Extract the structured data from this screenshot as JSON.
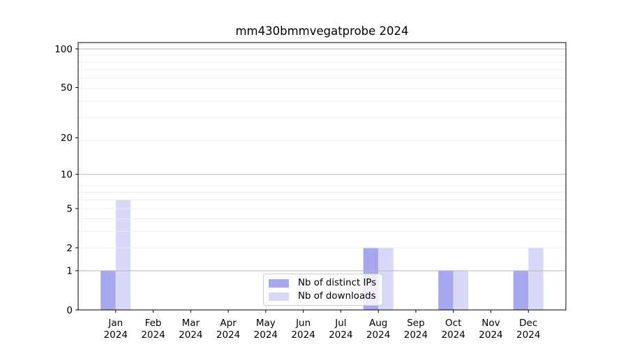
{
  "chart_data": {
    "type": "bar",
    "title": "mm430bmmvegatprobe 2024",
    "categories": [
      "Jan",
      "Feb",
      "Mar",
      "Apr",
      "May",
      "Jun",
      "Jul",
      "Aug",
      "Sep",
      "Oct",
      "Nov",
      "Dec"
    ],
    "x_tick_year": "2024",
    "series": [
      {
        "name": "Nb of distinct IPs",
        "color": "#a7a7f0",
        "values": [
          1,
          0,
          0,
          0,
          0,
          0,
          0,
          2,
          0,
          1,
          0,
          1
        ]
      },
      {
        "name": "Nb of downloads",
        "color": "#d8d8f8",
        "values": [
          6,
          0,
          0,
          0,
          0,
          0,
          0,
          2,
          0,
          1,
          0,
          2
        ]
      }
    ],
    "y_axis": {
      "scale": "log10(1+y)",
      "tick_values": [
        0,
        1,
        2,
        5,
        10,
        20,
        50,
        100
      ],
      "tick_labels": [
        "0",
        "1",
        "2",
        "5",
        "10",
        "20",
        "50",
        "100"
      ],
      "major_gridlines": [
        1,
        10,
        100
      ],
      "minor_gridlines": [
        2,
        3,
        4,
        5,
        6,
        7,
        8,
        19,
        29,
        39,
        49,
        59,
        69,
        79,
        89
      ],
      "ylim": [
        0,
        112
      ]
    },
    "grid": {
      "major_color": "#b8b8b8",
      "minor_color": "#ededed"
    },
    "axis_color": "#000000",
    "legend": {
      "position": "lower center",
      "entries": [
        {
          "label": "Nb of distinct IPs",
          "color": "#a7a7f0"
        },
        {
          "label": "Nb of downloads",
          "color": "#d8d8f8"
        }
      ]
    }
  }
}
